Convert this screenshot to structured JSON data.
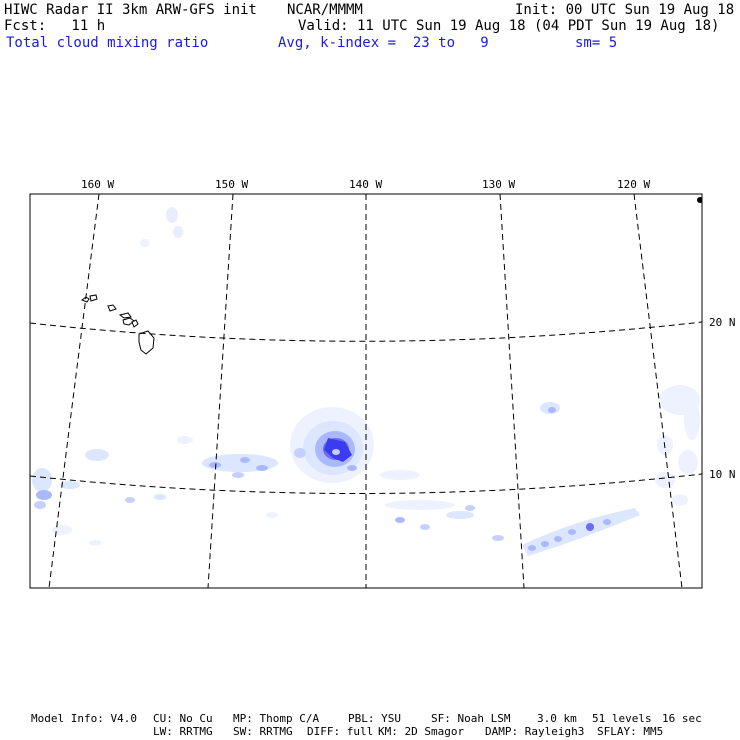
{
  "header": {
    "title": "HIWC Radar II 3km ARW-GFS init",
    "org": "NCAR/MMMM",
    "init": "Init: 00 UTC Sun 19 Aug 18",
    "fcst": "Fcst:   11 h",
    "valid": "Valid: 11 UTC Sun 19 Aug 18 (04 PDT Sun 19 Aug 18)",
    "field": "Total cloud mixing ratio",
    "avg": "Avg, k-index =  23 to   9",
    "sm": "sm= 5"
  },
  "map": {
    "lon_labels": [
      "160 W",
      "150 W",
      "140 W",
      "130 W",
      "120 W"
    ],
    "lat_labels": [
      "20 N",
      "10 N"
    ],
    "colors": {
      "frame": "#000000",
      "grid": "#000000",
      "cloud_light": "#dde6ff",
      "cloud_mid": "#aab8ff",
      "cloud_dark": "#3b3bf0"
    }
  },
  "footer": {
    "model_info": "Model Info: V4.0",
    "cu": "CU: No Cu",
    "mp": "MP: Thomp C/A",
    "pbl": "PBL: YSU",
    "sf": "SF: Noah LSM",
    "dx": "3.0 km",
    "levels": "51 levels",
    "dt": "16 sec",
    "lw": "LW: RRTMG",
    "sw": "SW: RRTMG",
    "diff": "DIFF: full",
    "km": "KM: 2D Smagor",
    "damp": "DAMP: Rayleigh3",
    "sflay": "SFLAY: MM5"
  }
}
